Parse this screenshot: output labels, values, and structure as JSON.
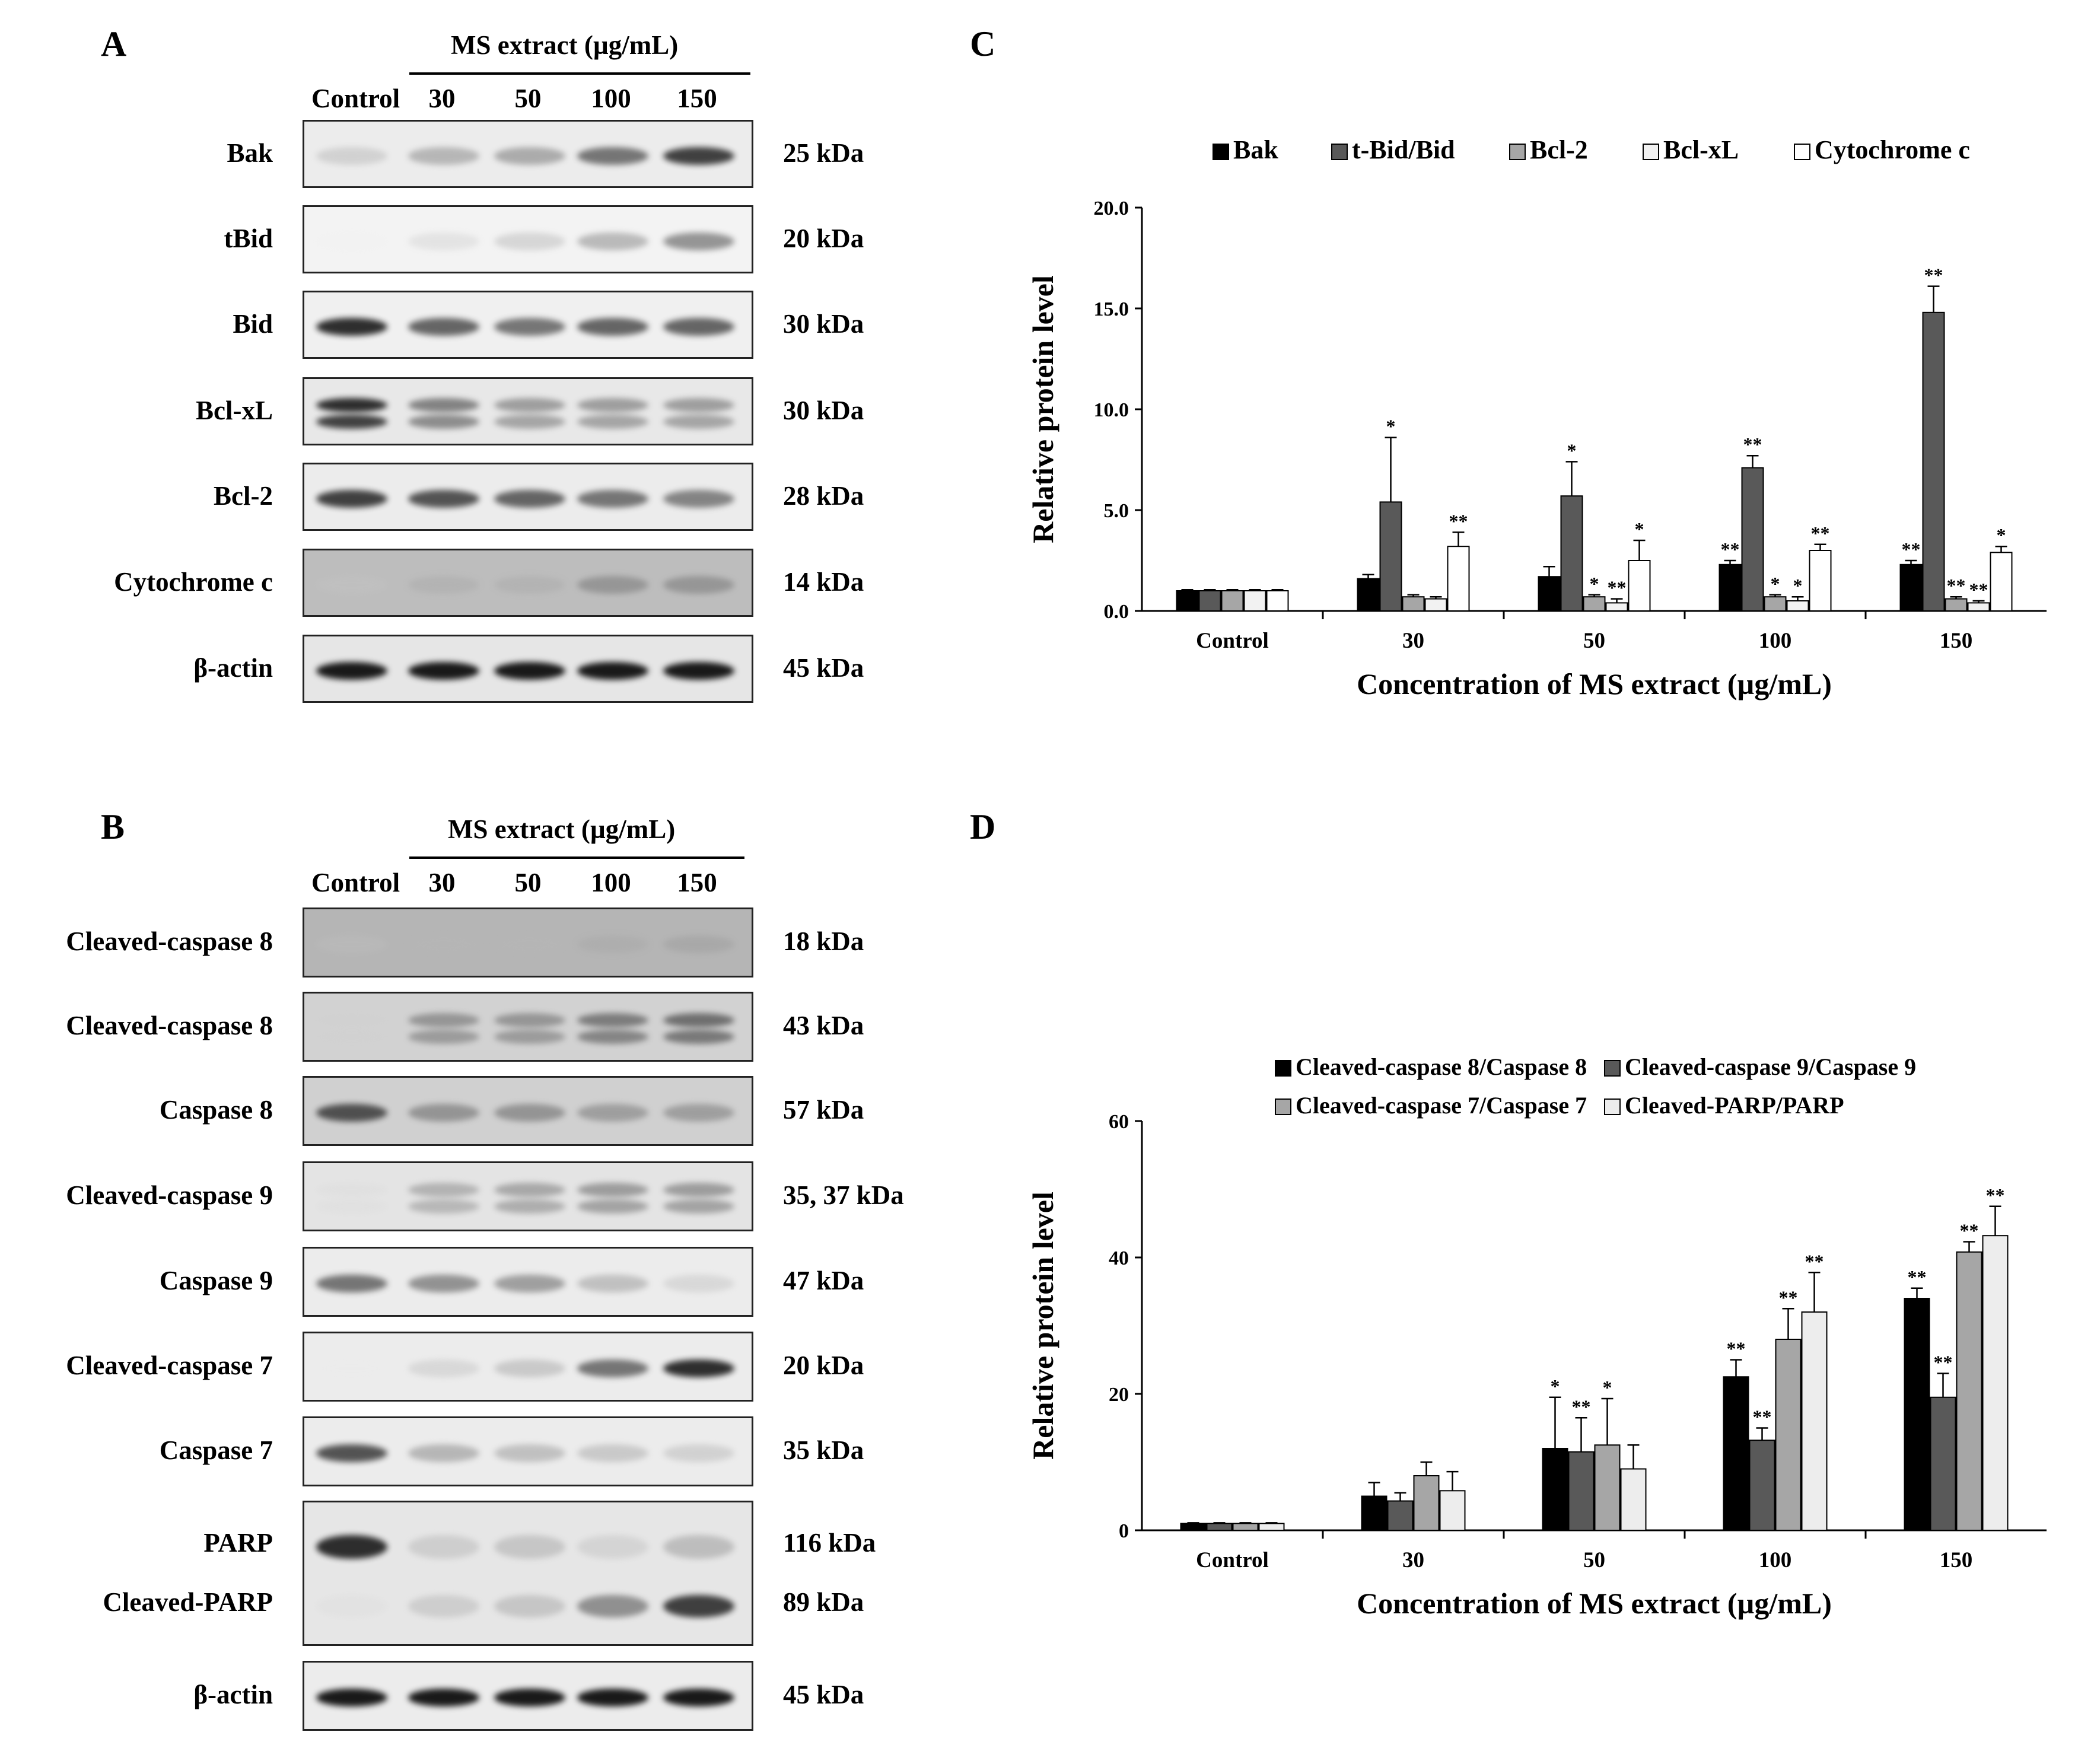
{
  "panels": {
    "A": {
      "letter": "A",
      "header": "MS extract (µg/mL)",
      "lanes": [
        "Control",
        "30",
        "50",
        "100",
        "150"
      ],
      "rows": [
        {
          "label": "Bak",
          "kda": "25 kDa",
          "intensity": [
            0.35,
            0.5,
            0.55,
            0.75,
            0.9
          ],
          "bg": "#ececec"
        },
        {
          "label": "tBid",
          "kda": "20 kDa",
          "intensity": [
            0.02,
            0.25,
            0.35,
            0.5,
            0.65
          ],
          "bg": "#f3f3f3"
        },
        {
          "label": "Bid",
          "kda": "30 kDa",
          "intensity": [
            0.95,
            0.8,
            0.75,
            0.8,
            0.8
          ],
          "bg": "#f0f0f0"
        },
        {
          "label": "Bcl-xL",
          "kda": "30 kDa",
          "intensity": [
            0.95,
            0.7,
            0.6,
            0.6,
            0.6
          ],
          "bg": "#e8e8e8",
          "double": true
        },
        {
          "label": "Bcl-2",
          "kda": "28 kDa",
          "intensity": [
            0.9,
            0.85,
            0.8,
            0.75,
            0.7
          ],
          "bg": "#ececec"
        },
        {
          "label": "Cytochrome c",
          "kda": "14 kDa",
          "intensity": [
            0.1,
            0.35,
            0.35,
            0.55,
            0.55
          ],
          "bg": "#bdbdbd"
        },
        {
          "label": "β-actin",
          "kda": "45 kDa",
          "intensity": [
            1.0,
            1.0,
            1.0,
            1.0,
            1.0
          ],
          "bg": "#e6e6e6"
        }
      ]
    },
    "B": {
      "letter": "B",
      "header": "MS extract (µg/mL)",
      "lanes": [
        "Control",
        "30",
        "50",
        "100",
        "150"
      ],
      "rows": [
        {
          "label": "Cleaved-caspase 8",
          "kda": "18 kDa",
          "intensity": [
            0.05,
            0.25,
            0.25,
            0.35,
            0.4
          ],
          "bg": "#b5b5b5"
        },
        {
          "label": "Cleaved-caspase 8",
          "kda": "43 kDa",
          "intensity": [
            0.15,
            0.6,
            0.6,
            0.7,
            0.75
          ],
          "bg": "#d2d2d2",
          "double": true
        },
        {
          "label": "Caspase 8",
          "kda": "57 kDa",
          "intensity": [
            0.85,
            0.6,
            0.6,
            0.55,
            0.55
          ],
          "bg": "#d0d0d0"
        },
        {
          "label": "Cleaved-caspase 9",
          "kda": "35, 37 kDa",
          "intensity": [
            0.15,
            0.5,
            0.55,
            0.6,
            0.6
          ],
          "bg": "#e4e4e4",
          "double": true
        },
        {
          "label": "Caspase 9",
          "kda": "47 kDa",
          "intensity": [
            0.75,
            0.65,
            0.6,
            0.45,
            0.3
          ],
          "bg": "#ececec"
        },
        {
          "label": "Cleaved-caspase 7",
          "kda": "20 kDa",
          "intensity": [
            0.02,
            0.3,
            0.4,
            0.75,
            0.95
          ],
          "bg": "#ececec"
        },
        {
          "label": "Caspase 7",
          "kda": "35 kDa",
          "intensity": [
            0.85,
            0.5,
            0.45,
            0.4,
            0.35
          ],
          "bg": "#ececec"
        },
        {
          "label": "PARP",
          "label2": "Cleaved-PARP",
          "kda": "116 kDa",
          "kda2": "89 kDa",
          "intensity": [
            0.95,
            0.35,
            0.4,
            0.3,
            0.45
          ],
          "intensity2": [
            0.15,
            0.35,
            0.4,
            0.65,
            0.9
          ],
          "bg": "#e6e6e6",
          "parp": true
        },
        {
          "label": "β-actin",
          "kda": "45 kDa",
          "intensity": [
            1.0,
            1.0,
            1.0,
            1.0,
            1.0
          ],
          "bg": "#ececec"
        }
      ]
    },
    "C": {
      "letter": "C"
    },
    "D": {
      "letter": "D"
    }
  },
  "chart_data": [
    {
      "id": "C",
      "type": "bar",
      "xlabel": "Concentration of MS extract  (µg/mL)",
      "ylabel": "Relative protein level",
      "categories": [
        "Control",
        "30",
        "50",
        "100",
        "150"
      ],
      "ylim": [
        0,
        20
      ],
      "yticks": [
        "0.0",
        "5.0",
        "10.0",
        "15.0",
        "20.0"
      ],
      "legend_position": "top",
      "grid": false,
      "series": [
        {
          "name": "Bak",
          "color": "#000000",
          "values": [
            1.0,
            1.6,
            1.7,
            2.3,
            2.3
          ],
          "errors": [
            0.05,
            0.2,
            0.5,
            0.2,
            0.2
          ],
          "sig": [
            "",
            "",
            "",
            "**",
            "**"
          ]
        },
        {
          "name": "t-Bid/Bid",
          "color": "#595959",
          "values": [
            1.0,
            5.4,
            5.7,
            7.1,
            14.8
          ],
          "errors": [
            0.05,
            3.2,
            1.7,
            0.6,
            1.3
          ],
          "sig": [
            "",
            "*",
            "*",
            "**",
            "**"
          ]
        },
        {
          "name": "Bcl-2",
          "color": "#a6a6a6",
          "values": [
            1.0,
            0.7,
            0.7,
            0.7,
            0.6
          ],
          "errors": [
            0.05,
            0.1,
            0.1,
            0.1,
            0.1
          ],
          "sig": [
            "",
            "",
            "*",
            "*",
            "**"
          ]
        },
        {
          "name": "Bcl-xL",
          "color": "#f2f2f2",
          "values": [
            1.0,
            0.6,
            0.4,
            0.5,
            0.4
          ],
          "errors": [
            0.05,
            0.1,
            0.2,
            0.2,
            0.1
          ],
          "sig": [
            "",
            "",
            "**",
            "*",
            "**"
          ]
        },
        {
          "name": "Cytochrome c",
          "color": "#ffffff",
          "values": [
            1.0,
            3.2,
            2.5,
            3.0,
            2.9
          ],
          "errors": [
            0.05,
            0.7,
            1.0,
            0.3,
            0.3
          ],
          "sig": [
            "",
            "**",
            "*",
            "**",
            "*"
          ]
        }
      ]
    },
    {
      "id": "D",
      "type": "bar",
      "xlabel": "Concentration of MS extract  (µg/mL)",
      "ylabel": "Relative protein level",
      "categories": [
        "Control",
        "30",
        "50",
        "100",
        "150"
      ],
      "ylim": [
        0,
        60
      ],
      "yticks": [
        "0",
        "20",
        "40",
        "60"
      ],
      "legend_position": "top",
      "grid": false,
      "series": [
        {
          "name": "Cleaved-caspase 8/Caspase 8",
          "color": "#000000",
          "values": [
            1.0,
            5.0,
            12.0,
            22.5,
            34.0
          ],
          "errors": [
            0.1,
            2.0,
            7.5,
            2.5,
            1.5
          ],
          "sig": [
            "",
            "",
            "*",
            "**",
            "**"
          ]
        },
        {
          "name": "Cleaved-caspase 9/Caspase 9",
          "color": "#595959",
          "values": [
            1.0,
            4.3,
            11.5,
            13.2,
            19.5
          ],
          "errors": [
            0.1,
            1.2,
            5.0,
            1.8,
            3.5
          ],
          "sig": [
            "",
            "",
            "**",
            "**",
            "**"
          ]
        },
        {
          "name": "Cleaved-caspase 7/Caspase 7",
          "color": "#a6a6a6",
          "values": [
            1.0,
            8.0,
            12.5,
            28.0,
            40.8
          ],
          "errors": [
            0.1,
            2.0,
            6.8,
            4.5,
            1.5
          ],
          "sig": [
            "",
            "",
            "*",
            "**",
            "**"
          ]
        },
        {
          "name": "Cleaved-PARP/PARP",
          "color": "#ededed",
          "values": [
            1.0,
            5.8,
            9.0,
            32.0,
            43.2
          ],
          "errors": [
            0.1,
            2.8,
            3.5,
            5.8,
            4.3
          ],
          "sig": [
            "",
            "",
            "",
            "**",
            "**"
          ]
        }
      ]
    }
  ]
}
